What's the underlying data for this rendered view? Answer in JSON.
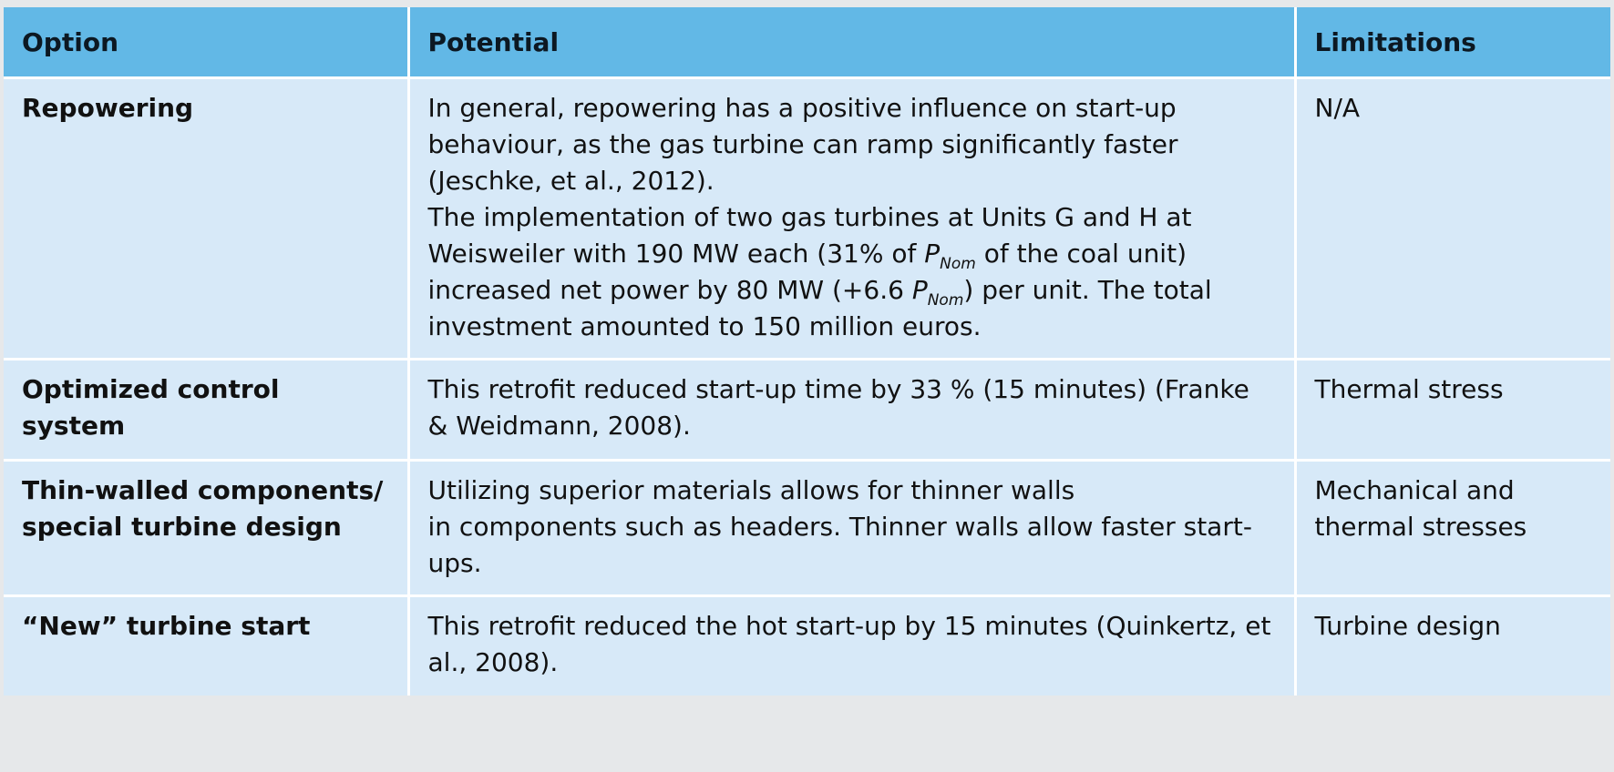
{
  "table": {
    "headers": {
      "option": "Option",
      "potential": "Potential",
      "limitations": "Limitations"
    },
    "rows": [
      {
        "option": "Repowering",
        "potential_para1": "In general, repowering has a positive influence on start-up behaviour, as the gas turbine can ramp significantly faster (Jeschke, et al., 2012).",
        "potential_para2_a": "The implementation of two gas turbines at Units G and H at Weisweiler with 190 MW each (31% of ",
        "potential_para2_p1": "P",
        "potential_para2_sub1": "Nom",
        "potential_para2_b": " of the coal unit) increased net power by 80 MW (+6.6 ",
        "potential_para2_p2": "P",
        "potential_para2_sub2": "Nom",
        "potential_para2_c": ") per unit. The total investment amounted to 150 million euros.",
        "limitations": "N/A"
      },
      {
        "option": "Optimized control system",
        "potential": "This retrofit reduced start-up time by 33 % (15 minutes) (Franke & Weidmann, 2008).",
        "limitations": "Thermal stress"
      },
      {
        "option": "Thin-walled components/ special turbine design",
        "potential_line1": "Utilizing superior materials allows for thinner walls",
        "potential_line2": "in components such as headers. Thinner walls allow faster start-ups.",
        "limitations": "Mechanical and thermal stresses"
      },
      {
        "option": "“New” turbine start",
        "potential": "This retrofit reduced the hot start-up by 15 minutes (Quinkertz, et al., 2008).",
        "limitations": "Turbine design"
      }
    ]
  },
  "colors": {
    "header_bg": "#62b8e6",
    "cell_bg": "#d7e9f8",
    "divider": "#ffffff"
  }
}
